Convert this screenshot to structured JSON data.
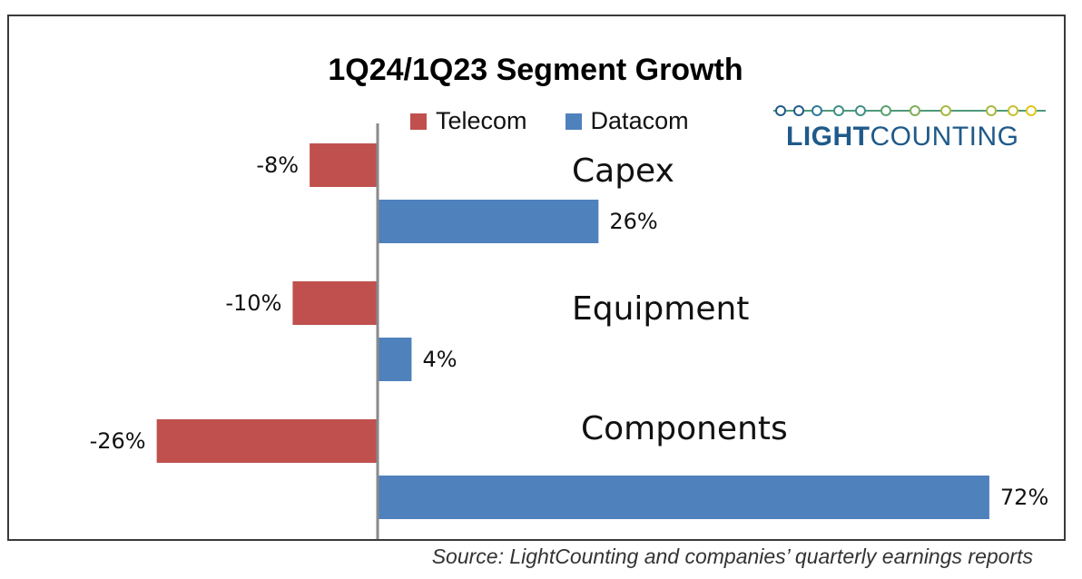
{
  "chart_data": {
    "type": "bar",
    "orientation": "horizontal",
    "title": "1Q24/1Q23 Segment Growth",
    "categories": [
      "Capex",
      "Equipment",
      "Components"
    ],
    "series": [
      {
        "name": "Telecom",
        "color": "#c0504d",
        "values": [
          -8,
          -10,
          -26
        ],
        "labels": [
          "-8%",
          "-10%",
          "-26%"
        ]
      },
      {
        "name": "Datacom",
        "color": "#4f81bd",
        "values": [
          26,
          4,
          72
        ],
        "labels": [
          "26%",
          "4%",
          "72%"
        ]
      }
    ],
    "xlim": [
      -26,
      72
    ],
    "grid": false,
    "legend": "top"
  },
  "logo": {
    "text_bold": "LIGHT",
    "text_regular": "COUNTING",
    "dot_colors": [
      "#1f5a8a",
      "#2d7a9a",
      "#3f8f86",
      "#5aa070",
      "#7fae55",
      "#a8b83e",
      "#c9c02a",
      "#e0c61c"
    ]
  },
  "source": "Source: LightCounting and companies’ quarterly earnings reports"
}
